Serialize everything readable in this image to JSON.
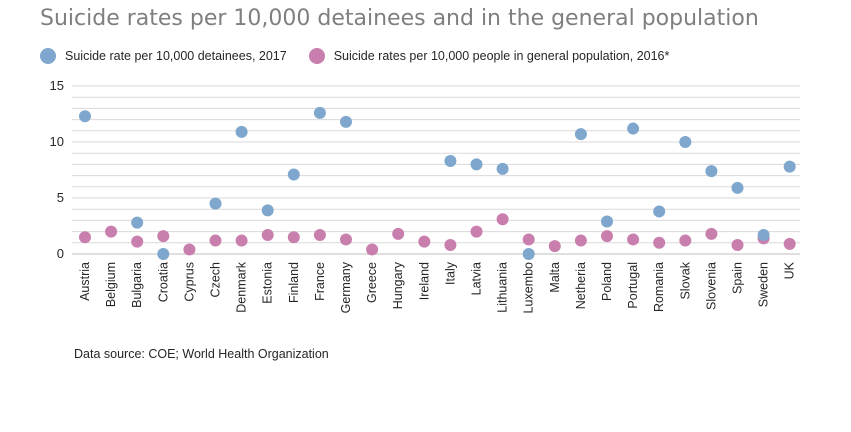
{
  "chart_data": {
    "type": "scatter",
    "title": "Suicide rates per 10,000 detainees and in the general population",
    "xlabel": "",
    "ylabel": "",
    "ylim": [
      0,
      15
    ],
    "yticks": [
      0,
      5,
      10,
      15
    ],
    "grid": true,
    "legend_position": "top",
    "categories": [
      "Austria",
      "Belgium",
      "Bulgaria",
      "Croatia",
      "Cyprus",
      "Czech",
      "Denmark",
      "Estonia",
      "Finland",
      "France",
      "Germany",
      "Greece",
      "Hungary",
      "Ireland",
      "Italy",
      "Latvia",
      "Lithuania",
      "Luxembo",
      "Malta",
      "Netheria",
      "Poland",
      "Portugal",
      "Romania",
      "Slovak",
      "Slovenia",
      "Spain",
      "Sweden",
      "UK"
    ],
    "series": [
      {
        "name": "Suicide rate per 10,000 detainees, 2017",
        "color": "#7fa7cd",
        "values": [
          12.3,
          null,
          2.8,
          0,
          null,
          4.5,
          10.9,
          3.9,
          7.1,
          12.6,
          11.8,
          null,
          null,
          null,
          8.3,
          8.0,
          7.6,
          0,
          null,
          10.7,
          2.9,
          11.2,
          3.8,
          10.0,
          7.4,
          5.9,
          1.7,
          7.8
        ]
      },
      {
        "name": "Suicide rates per 10,000 people in general population, 2016*",
        "color": "#c97fad",
        "values": [
          1.5,
          2.0,
          1.1,
          1.6,
          0.4,
          1.2,
          1.2,
          1.7,
          1.5,
          1.7,
          1.3,
          0.4,
          1.8,
          1.1,
          0.8,
          2.0,
          3.1,
          1.3,
          0.7,
          1.2,
          1.6,
          1.3,
          1.0,
          1.2,
          1.8,
          0.8,
          1.4,
          0.9
        ]
      }
    ]
  },
  "footer": {
    "source": "Data source: COE; World Health Organization"
  }
}
